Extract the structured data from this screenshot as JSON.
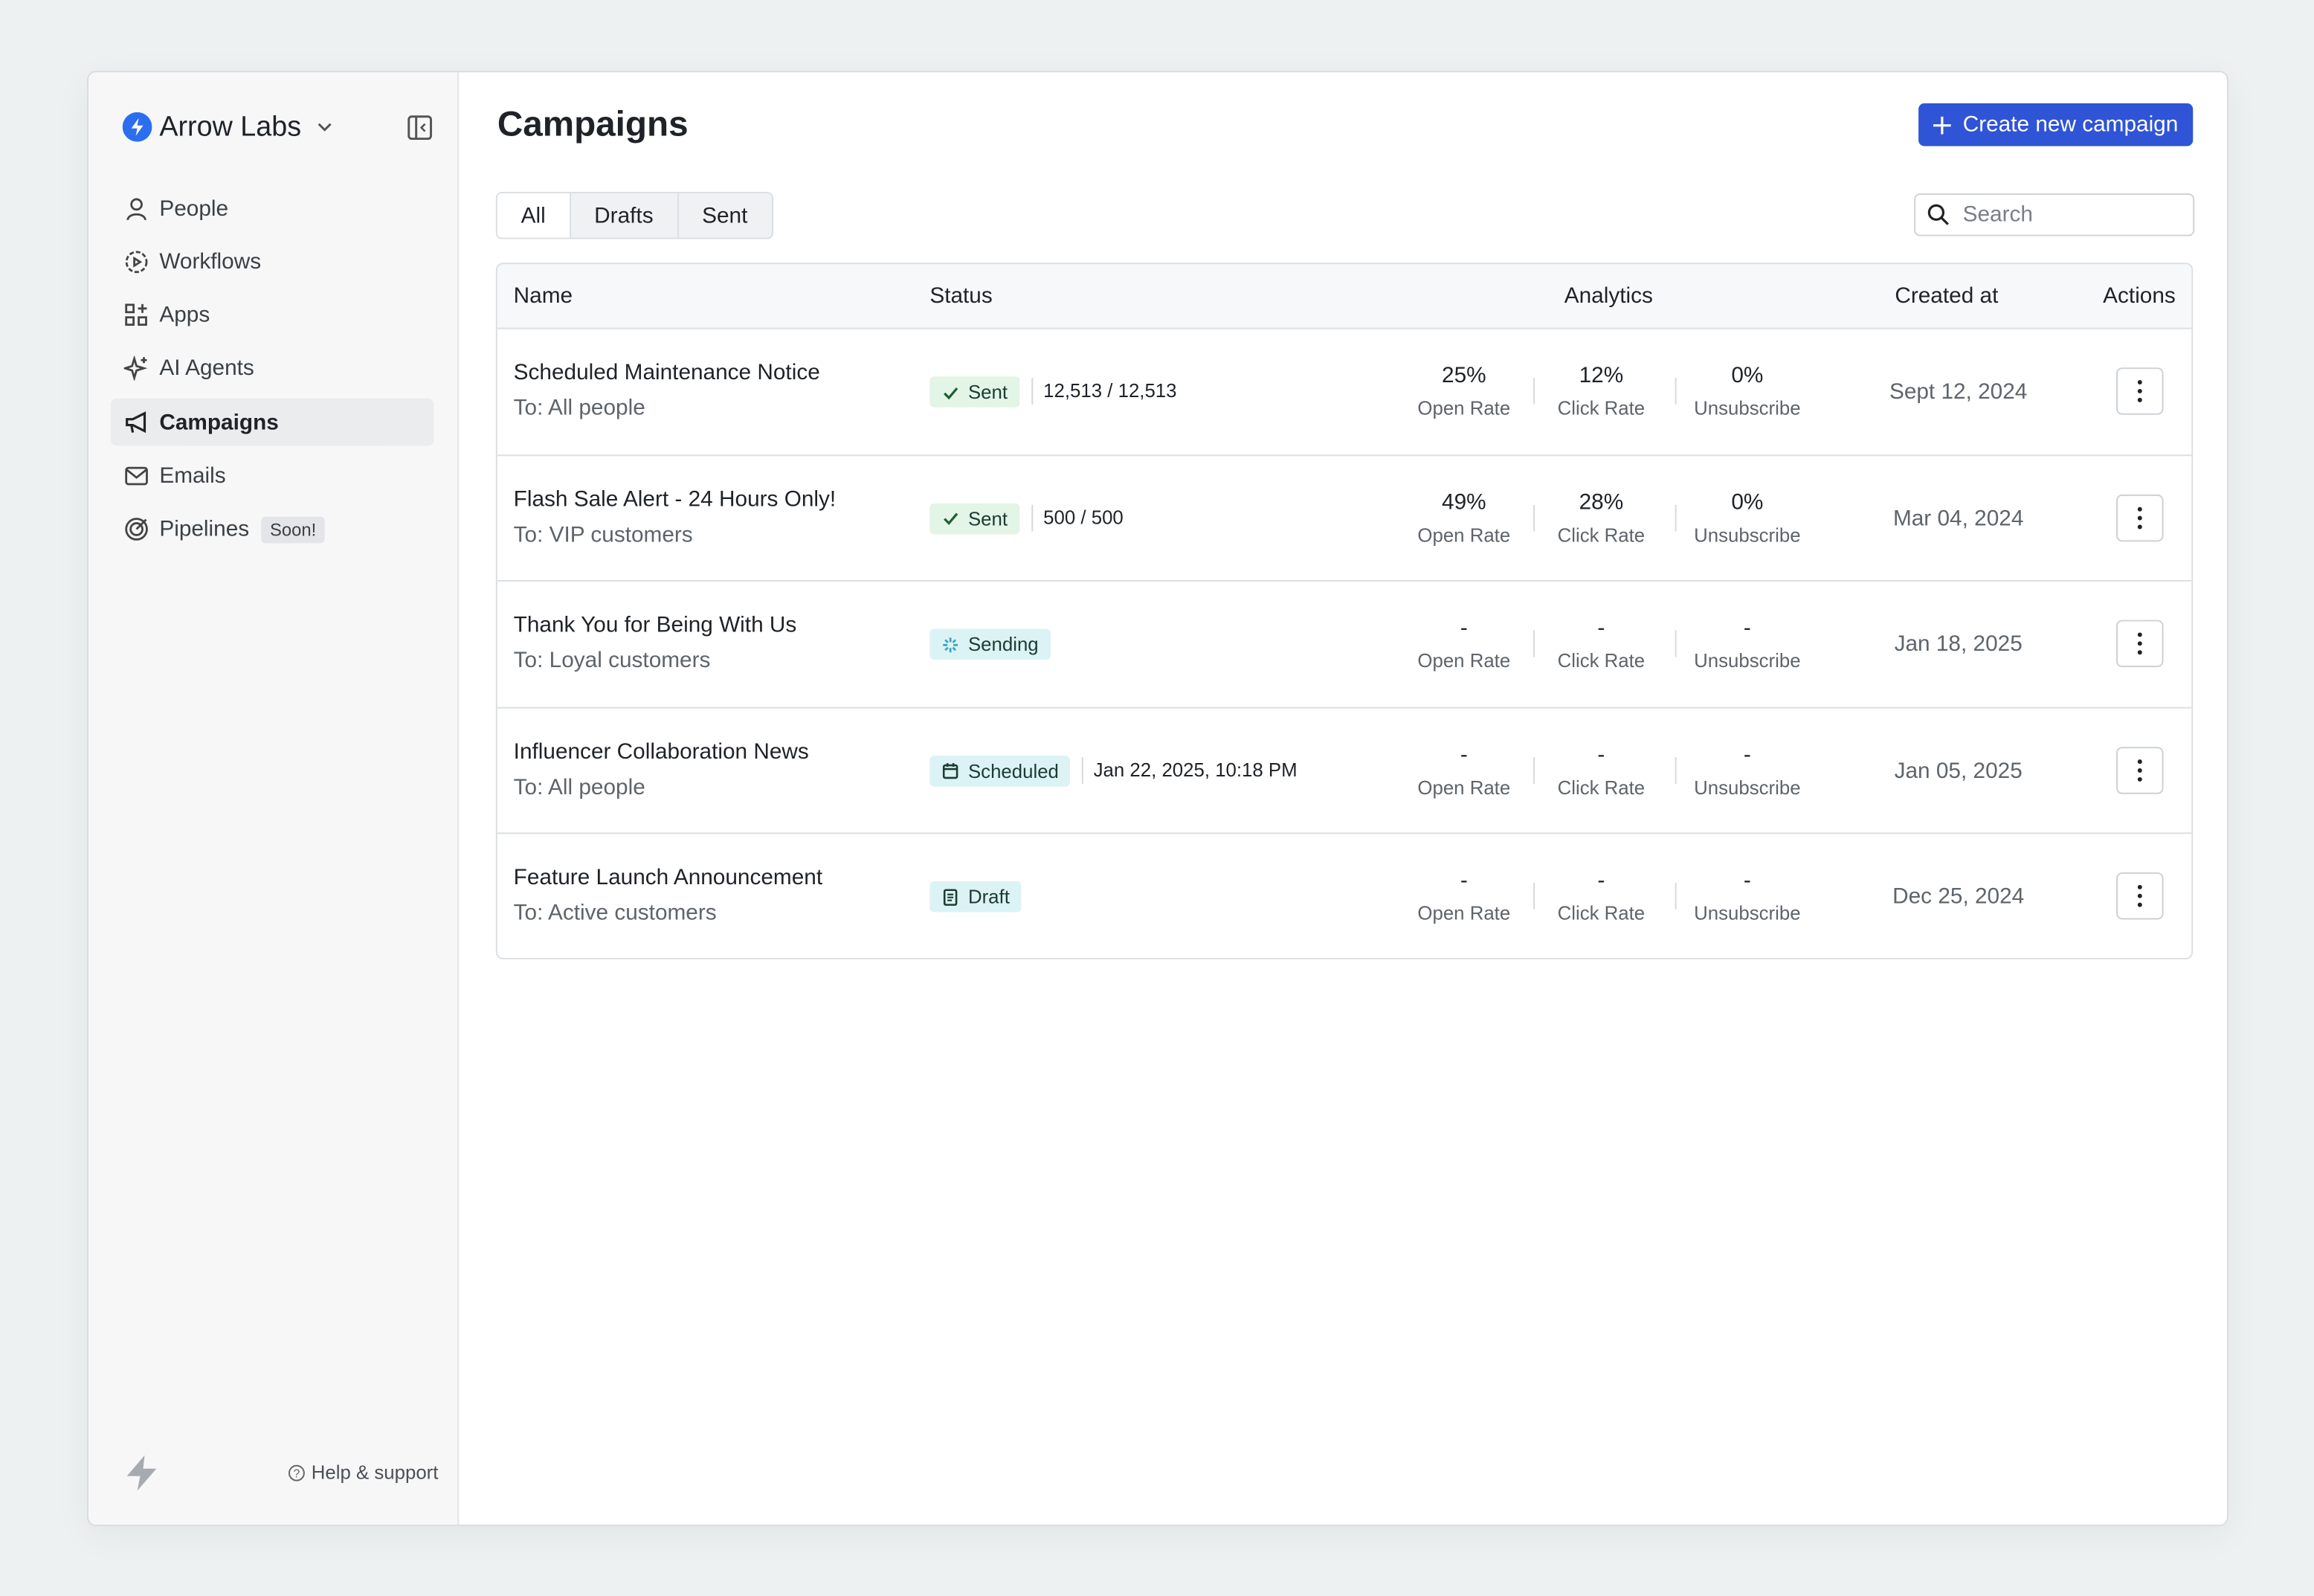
{
  "sidebar": {
    "workspace": "Arrow Labs",
    "nav": [
      {
        "label": "People"
      },
      {
        "label": "Workflows"
      },
      {
        "label": "Apps"
      },
      {
        "label": "AI Agents"
      },
      {
        "label": "Campaigns"
      },
      {
        "label": "Emails"
      },
      {
        "label": "Pipelines",
        "badge": "Soon!"
      }
    ],
    "footer": "Help & support"
  },
  "header": {
    "title": "Campaigns",
    "button": "Create new campaign"
  },
  "tabs": [
    "All",
    "Drafts",
    "Sent"
  ],
  "search": {
    "placeholder": "Search"
  },
  "table": {
    "columns": [
      "Name",
      "Status",
      "Analytics",
      "Created at",
      "Actions"
    ],
    "rows": [
      {
        "name": "Scheduled Maintenance Notice",
        "audience": "To: All people",
        "status": "Sent",
        "status_color": "#e2f5e7",
        "status_detail": "12,513 / 12,513",
        "metrics": [
          {
            "value": "25%",
            "label": "Open Rate"
          },
          {
            "value": "12%",
            "label": "Click Rate"
          },
          {
            "value": "0%",
            "label": "Unsubscribe"
          }
        ],
        "created": "Sept 12, 2024"
      },
      {
        "name": "Flash Sale Alert - 24 Hours Only!",
        "audience": "To: VIP customers",
        "status": "Sent",
        "status_color": "#e2f5e7",
        "status_detail": "500 / 500",
        "metrics": [
          {
            "value": "49%",
            "label": "Open Rate"
          },
          {
            "value": "28%",
            "label": "Click Rate"
          },
          {
            "value": "0%",
            "label": "Unsubscribe"
          }
        ],
        "created": "Mar 04, 2024"
      },
      {
        "name": "Thank You for Being With Us",
        "audience": "To: Loyal customers",
        "status": "Sending",
        "status_color": "#dcf3f5",
        "metrics": [
          {
            "value": "-",
            "label": "Open Rate"
          },
          {
            "value": "-",
            "label": "Click Rate"
          },
          {
            "value": "-",
            "label": "Unsubscribe"
          }
        ],
        "created": "Jan 18, 2025"
      },
      {
        "name": "Influencer Collaboration News",
        "audience": "To: All people",
        "status": "Scheduled",
        "status_color": "#dcf3f5",
        "status_detail": "Jan 22, 2025, 10:18 PM",
        "metrics": [
          {
            "value": "-",
            "label": "Open Rate"
          },
          {
            "value": "-",
            "label": "Click Rate"
          },
          {
            "value": "-",
            "label": "Unsubscribe"
          }
        ],
        "created": "Jan 05, 2025"
      },
      {
        "name": "Feature Launch Announcement",
        "audience": "To: Active customers",
        "status": "Draft",
        "status_color": "#dcf3f5",
        "metrics": [
          {
            "value": "-",
            "label": "Open Rate"
          },
          {
            "value": "-",
            "label": "Click Rate"
          },
          {
            "value": "-",
            "label": "Unsubscribe"
          }
        ],
        "created": "Dec 25, 2024"
      }
    ]
  }
}
